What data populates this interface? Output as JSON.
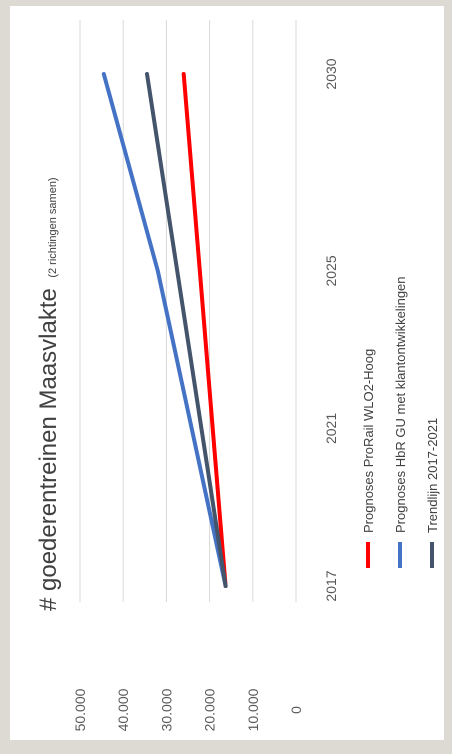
{
  "chart_data": {
    "type": "line",
    "title": "# goederentreinen Maasvlakte",
    "subtitle": "(2 richtingen samen)",
    "xlabel": "",
    "ylabel": "",
    "x": [
      2017,
      2021,
      2025,
      2030
    ],
    "x_tick_labels": [
      "2017",
      "2021",
      "2025",
      "2030"
    ],
    "xlim": [
      2017,
      2030
    ],
    "ylim": [
      0,
      50000
    ],
    "y_ticks": [
      0,
      10000,
      20000,
      30000,
      40000,
      50000
    ],
    "y_tick_labels": [
      "0",
      "10.000",
      "20.000",
      "30.000",
      "40.000",
      "50.000"
    ],
    "gridlines": true,
    "legend_position": "bottom",
    "orientation": "rotated 90° counter-clockwise",
    "series": [
      {
        "name": "Prognoses ProRail WLO2-Hoog",
        "color": "#ff0000",
        "points": [
          [
            2017,
            16300
          ],
          [
            2030,
            26000
          ]
        ]
      },
      {
        "name": "Prognoses HbR GU met klantontwikkelingen",
        "color": "#4472c4",
        "points": [
          [
            2017,
            16300
          ],
          [
            2025,
            32000
          ],
          [
            2030,
            44500
          ]
        ]
      },
      {
        "name": "Trendlijn 2017-2021",
        "color": "#44546a",
        "points": [
          [
            2017,
            16300
          ],
          [
            2030,
            34500
          ]
        ]
      }
    ]
  }
}
